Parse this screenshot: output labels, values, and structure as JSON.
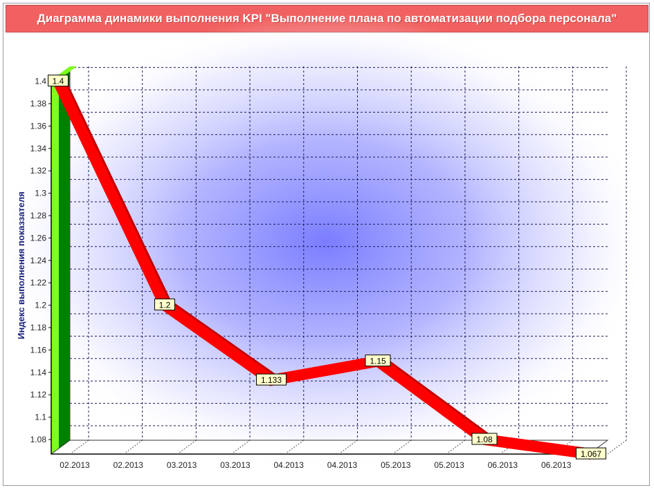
{
  "chart_data": {
    "type": "line",
    "title": "Диаграмма динамики выполнения KPI \"Выполнение плана по автоматизации подбора персонала\"",
    "ylabel": "Индекс выполнения показзателя",
    "xlabel": "",
    "y_ticks": [
      "1.08",
      "1.1",
      "1.12",
      "1.14",
      "1.16",
      "1.18",
      "1.2",
      "1.22",
      "1.24",
      "1.26",
      "1.28",
      "1.3",
      "1.32",
      "1.34",
      "1.36",
      "1.38",
      "1.4"
    ],
    "x_ticks": [
      "02.2013",
      "02.2013",
      "03.2013",
      "03.2013",
      "04.2013",
      "04.2013",
      "05.2013",
      "05.2013",
      "06.2013",
      "06.2013"
    ],
    "ylim": [
      1.07,
      1.41
    ],
    "grid": true,
    "series": [
      {
        "points": [
          {
            "x": 0,
            "y": 1.4,
            "label": "1.4"
          },
          {
            "x": 2,
            "y": 1.2,
            "label": "1.2"
          },
          {
            "x": 4,
            "y": 1.133,
            "label": "1.133"
          },
          {
            "x": 6,
            "y": 1.15,
            "label": "1.15"
          },
          {
            "x": 8,
            "y": 1.08,
            "label": "1.08"
          },
          {
            "x": 10,
            "y": 1.067,
            "label": "1.067"
          }
        ]
      }
    ],
    "colors": {
      "line": "#ff0000",
      "line_dark": "#c40000",
      "title_bar": "#f26161",
      "glow": "#7a7dff",
      "axis_bar_light": "#7fff20",
      "axis_bar_dark": "#008000"
    }
  }
}
